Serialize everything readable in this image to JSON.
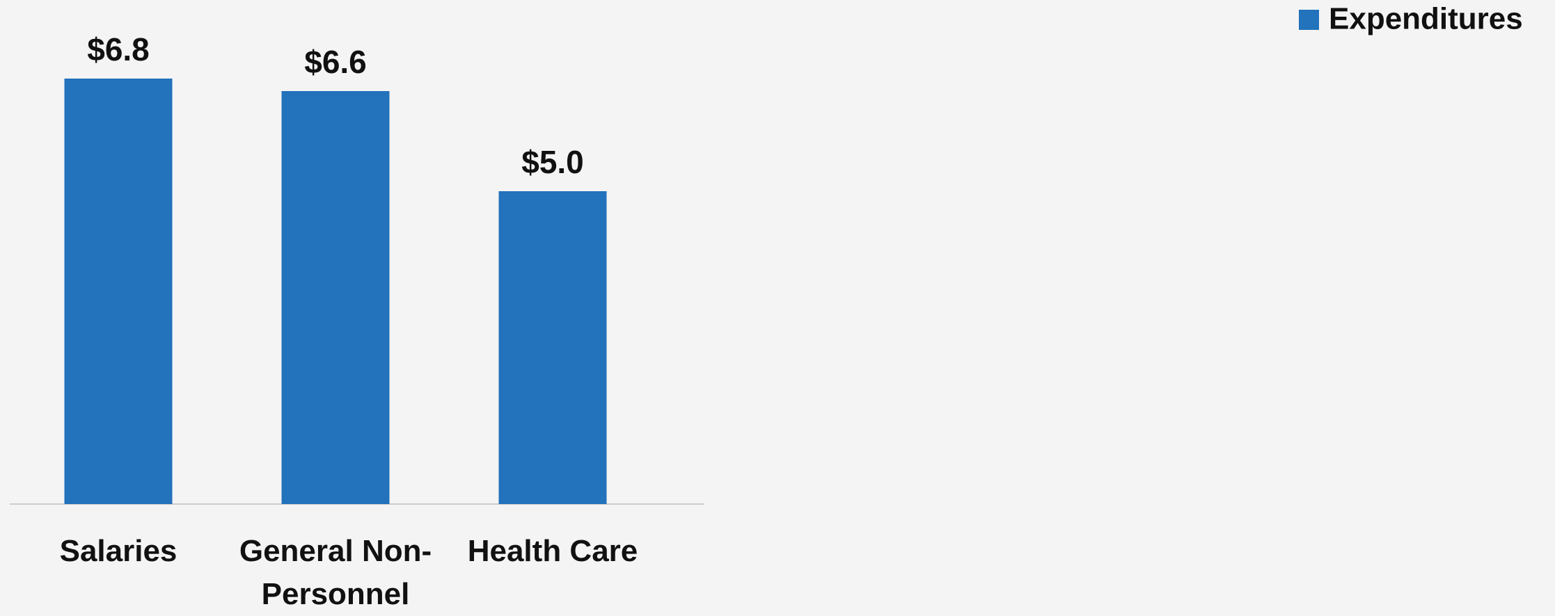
{
  "chart_data": {
    "type": "bar",
    "categories": [
      "Salaries",
      "General Non-Personnel",
      "Health Care"
    ],
    "series": [
      {
        "name": "Expenditures",
        "color": "#2272bc",
        "values": [
          6.8,
          6.6,
          5.0
        ],
        "value_labels": [
          "$6.8",
          "$6.6",
          "$5.0"
        ]
      }
    ],
    "legend": "top-right"
  }
}
